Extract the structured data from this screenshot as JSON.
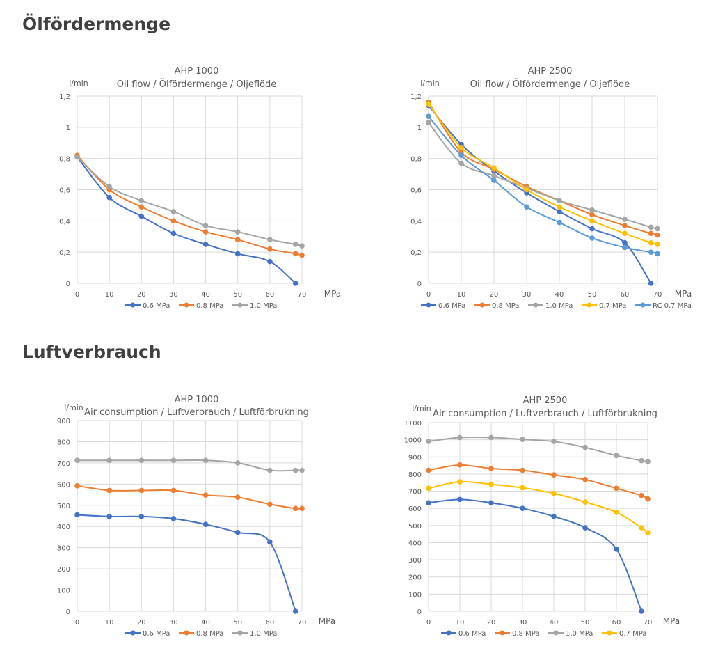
{
  "sections": [
    {
      "heading": "Ölfördermenge"
    },
    {
      "heading": "Luftverbrauch"
    }
  ],
  "chart_data": [
    {
      "type": "line",
      "title": "AHP 1000",
      "subtitle": "Oil flow / Ölfördermenge / Oljeflöde",
      "ylabel": "l/min",
      "xlabel": "MPa",
      "xlim": [
        0,
        70
      ],
      "ylim": [
        0,
        1.2
      ],
      "xticks": [
        "0",
        "10",
        "20",
        "30",
        "40",
        "50",
        "60",
        "70"
      ],
      "yticks": [
        "0",
        "0,2",
        "0,4",
        "0,6",
        "0,8",
        "1",
        "1,2"
      ],
      "grid": true,
      "legend": "bottom",
      "series": [
        {
          "name": "0,6 MPa",
          "color": "#4472C4",
          "x": [
            0,
            10,
            20,
            30,
            40,
            50,
            60,
            68
          ],
          "y": [
            0.81,
            0.55,
            0.43,
            0.32,
            0.25,
            0.19,
            0.14,
            0
          ]
        },
        {
          "name": "0,8 MPa",
          "color": "#ED7D31",
          "x": [
            0,
            10,
            20,
            30,
            40,
            50,
            60,
            68,
            70
          ],
          "y": [
            0.82,
            0.6,
            0.49,
            0.4,
            0.33,
            0.28,
            0.22,
            0.19,
            0.18
          ]
        },
        {
          "name": "1,0 MPa",
          "color": "#A5A5A5",
          "x": [
            0,
            10,
            20,
            30,
            40,
            50,
            60,
            68,
            70
          ],
          "y": [
            0.81,
            0.62,
            0.53,
            0.46,
            0.37,
            0.33,
            0.28,
            0.25,
            0.24
          ]
        }
      ]
    },
    {
      "type": "line",
      "title": "AHP 2500",
      "subtitle": "Oil flow / Ölfördermenge / Oljeflöde",
      "ylabel": "l/min",
      "xlabel": "MPa",
      "xlim": [
        0,
        70
      ],
      "ylim": [
        0,
        1.2
      ],
      "xticks": [
        "0",
        "10",
        "20",
        "30",
        "40",
        "50",
        "60",
        "70"
      ],
      "yticks": [
        "0",
        "0,2",
        "0,4",
        "0,6",
        "0,8",
        "1",
        "1,2"
      ],
      "grid": true,
      "legend": "bottom",
      "series": [
        {
          "name": "0,6 MPa",
          "color": "#4472C4",
          "x": [
            0,
            10,
            20,
            30,
            40,
            50,
            60,
            68
          ],
          "y": [
            1.14,
            0.89,
            0.72,
            0.58,
            0.46,
            0.35,
            0.26,
            0
          ]
        },
        {
          "name": "0,8 MPa",
          "color": "#ED7D31",
          "x": [
            0,
            10,
            20,
            30,
            40,
            50,
            60,
            68,
            70
          ],
          "y": [
            1.16,
            0.84,
            0.73,
            0.62,
            0.53,
            0.44,
            0.37,
            0.32,
            0.31
          ]
        },
        {
          "name": "1,0 MPa",
          "color": "#A5A5A5",
          "x": [
            0,
            10,
            20,
            30,
            40,
            50,
            60,
            68,
            70
          ],
          "y": [
            1.03,
            0.77,
            0.69,
            0.61,
            0.53,
            0.47,
            0.41,
            0.36,
            0.35
          ]
        },
        {
          "name": "0,7 MPa",
          "color": "#FFC000",
          "x": [
            0,
            10,
            20,
            30,
            40,
            50,
            60,
            68,
            70
          ],
          "y": [
            1.15,
            0.87,
            0.74,
            0.6,
            0.49,
            0.4,
            0.32,
            0.26,
            0.25
          ]
        },
        {
          "name": "RC 0,7 MPa",
          "color": "#5B9BD5",
          "x": [
            0,
            10,
            20,
            30,
            40,
            50,
            60,
            68,
            70
          ],
          "y": [
            1.07,
            0.82,
            0.66,
            0.49,
            0.39,
            0.29,
            0.23,
            0.2,
            0.19
          ]
        }
      ]
    },
    {
      "type": "line",
      "title": "AHP 1000",
      "subtitle": "Air consumption / Luftverbrauch / Luftförbrukning",
      "ylabel": "l/min",
      "xlabel": "MPa",
      "xlim": [
        0,
        70
      ],
      "ylim": [
        0,
        900
      ],
      "xticks": [
        "0",
        "10",
        "20",
        "30",
        "40",
        "50",
        "60",
        "70"
      ],
      "yticks": [
        "0",
        "100",
        "200",
        "300",
        "400",
        "500",
        "600",
        "700",
        "800",
        "900"
      ],
      "grid": true,
      "legend": "bottom",
      "series": [
        {
          "name": "0,6 MPa",
          "color": "#4472C4",
          "x": [
            0,
            10,
            20,
            30,
            40,
            50,
            60,
            68
          ],
          "y": [
            455,
            447,
            447,
            437,
            410,
            372,
            327,
            0
          ]
        },
        {
          "name": "0,8 MPa",
          "color": "#ED7D31",
          "x": [
            0,
            10,
            20,
            30,
            40,
            50,
            60,
            68,
            70
          ],
          "y": [
            592,
            570,
            570,
            570,
            548,
            538,
            505,
            485,
            485
          ]
        },
        {
          "name": "1,0 MPa",
          "color": "#A5A5A5",
          "x": [
            0,
            10,
            20,
            30,
            40,
            50,
            60,
            68,
            70
          ],
          "y": [
            712,
            712,
            712,
            712,
            712,
            700,
            665,
            665,
            665
          ]
        }
      ]
    },
    {
      "type": "line",
      "title": "AHP 2500",
      "subtitle": "Air consumption / Luftverbrauch / Luftförbrukning",
      "ylabel": "l/min",
      "xlabel": "MPa",
      "xlim": [
        0,
        70
      ],
      "ylim": [
        0,
        1100
      ],
      "xticks": [
        "0",
        "10",
        "20",
        "30",
        "40",
        "50",
        "60",
        "70"
      ],
      "yticks": [
        "0",
        "100",
        "200",
        "300",
        "400",
        "500",
        "600",
        "700",
        "800",
        "900",
        "1000",
        "1100"
      ],
      "grid": true,
      "legend": "bottom",
      "series": [
        {
          "name": "0,6 MPa",
          "color": "#4472C4",
          "x": [
            0,
            10,
            20,
            30,
            40,
            50,
            60,
            68
          ],
          "y": [
            632,
            652,
            632,
            600,
            553,
            487,
            362,
            0
          ]
        },
        {
          "name": "0,8 MPa",
          "color": "#ED7D31",
          "x": [
            0,
            10,
            20,
            30,
            40,
            50,
            60,
            68,
            70
          ],
          "y": [
            822,
            853,
            832,
            822,
            795,
            768,
            717,
            675,
            655
          ]
        },
        {
          "name": "1,0 MPa",
          "color": "#A5A5A5",
          "x": [
            0,
            10,
            20,
            30,
            40,
            50,
            60,
            68,
            70
          ],
          "y": [
            990,
            1013,
            1013,
            1002,
            990,
            955,
            908,
            878,
            873
          ]
        },
        {
          "name": "0,7 MPa",
          "color": "#FFC000",
          "x": [
            0,
            10,
            20,
            30,
            40,
            50,
            60,
            68,
            70
          ],
          "y": [
            717,
            755,
            740,
            720,
            687,
            637,
            577,
            487,
            458
          ]
        }
      ]
    }
  ]
}
